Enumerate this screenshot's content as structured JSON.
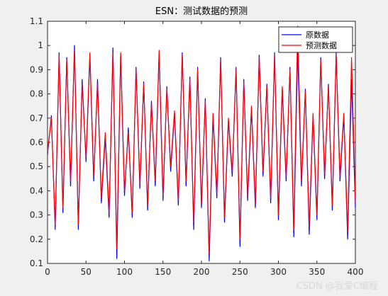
{
  "chart_data": {
    "type": "line",
    "title": "ESN：测试数据的预测",
    "xlabel": "",
    "ylabel": "",
    "xlim": [
      0,
      400
    ],
    "ylim": [
      0.1,
      1.1
    ],
    "xticks": [
      "0",
      "50",
      "100",
      "150",
      "200",
      "250",
      "300",
      "350",
      "400"
    ],
    "yticks": [
      "0.1",
      "0.2",
      "0.3",
      "0.4",
      "0.5",
      "0.6",
      "0.7",
      "0.8",
      "0.9",
      "1",
      "1.1"
    ],
    "grid": false,
    "legend_position": "top-right",
    "x": [
      0,
      5,
      10,
      15,
      20,
      25,
      30,
      35,
      40,
      45,
      50,
      55,
      60,
      65,
      70,
      75,
      80,
      85,
      90,
      95,
      100,
      105,
      110,
      115,
      120,
      125,
      130,
      135,
      140,
      145,
      150,
      155,
      160,
      165,
      170,
      175,
      180,
      185,
      190,
      195,
      200,
      205,
      210,
      215,
      220,
      225,
      230,
      235,
      240,
      245,
      250,
      255,
      260,
      265,
      270,
      275,
      280,
      285,
      290,
      295,
      300,
      305,
      310,
      315,
      320,
      325,
      330,
      335,
      340,
      345,
      350,
      355,
      360,
      365,
      370,
      375,
      380,
      385,
      390,
      395,
      400
    ],
    "series": [
      {
        "name": "原数据",
        "color": "#0000ff",
        "values": [
          0.55,
          0.71,
          0.24,
          0.97,
          0.31,
          0.95,
          0.42,
          1.0,
          0.24,
          0.86,
          0.52,
          0.96,
          0.44,
          0.86,
          0.35,
          0.62,
          0.29,
          0.99,
          0.12,
          0.96,
          0.38,
          0.66,
          0.29,
          0.91,
          0.41,
          0.85,
          0.32,
          0.77,
          0.42,
          0.97,
          0.36,
          0.83,
          0.48,
          0.72,
          0.34,
          0.97,
          0.42,
          0.87,
          0.24,
          0.91,
          0.33,
          0.78,
          0.11,
          0.71,
          0.37,
          0.95,
          0.27,
          0.69,
          0.46,
          0.91,
          0.17,
          0.86,
          0.36,
          0.74,
          0.33,
          0.96,
          0.46,
          0.84,
          0.35,
          0.97,
          0.28,
          0.82,
          0.44,
          0.91,
          0.21,
          0.99,
          0.42,
          0.82,
          0.22,
          0.71,
          0.28,
          0.95,
          0.45,
          0.84,
          0.32,
          0.97,
          0.44,
          0.71,
          0.2,
          0.86,
          0.33
        ]
      },
      {
        "name": "预测数据",
        "color": "#ff0000",
        "values": [
          0.56,
          0.7,
          0.26,
          0.96,
          0.33,
          0.94,
          0.44,
          0.98,
          0.26,
          0.84,
          0.54,
          0.97,
          0.46,
          0.84,
          0.37,
          0.64,
          0.31,
          0.97,
          0.16,
          0.97,
          0.4,
          0.64,
          0.31,
          0.9,
          0.43,
          0.84,
          0.34,
          0.76,
          0.44,
          0.98,
          0.38,
          0.82,
          0.5,
          0.73,
          0.36,
          0.96,
          0.44,
          0.86,
          0.27,
          0.9,
          0.35,
          0.77,
          0.14,
          0.72,
          0.39,
          0.94,
          0.29,
          0.7,
          0.48,
          0.9,
          0.2,
          0.85,
          0.38,
          0.75,
          0.35,
          0.95,
          0.48,
          0.83,
          0.37,
          0.96,
          0.3,
          0.83,
          0.46,
          0.9,
          0.24,
          1.08,
          0.44,
          0.81,
          0.25,
          0.72,
          0.3,
          0.94,
          0.47,
          0.83,
          0.34,
          0.96,
          0.46,
          0.72,
          0.23,
          0.95,
          0.35
        ]
      }
    ]
  },
  "watermark": "CSDN @我爱C编程"
}
